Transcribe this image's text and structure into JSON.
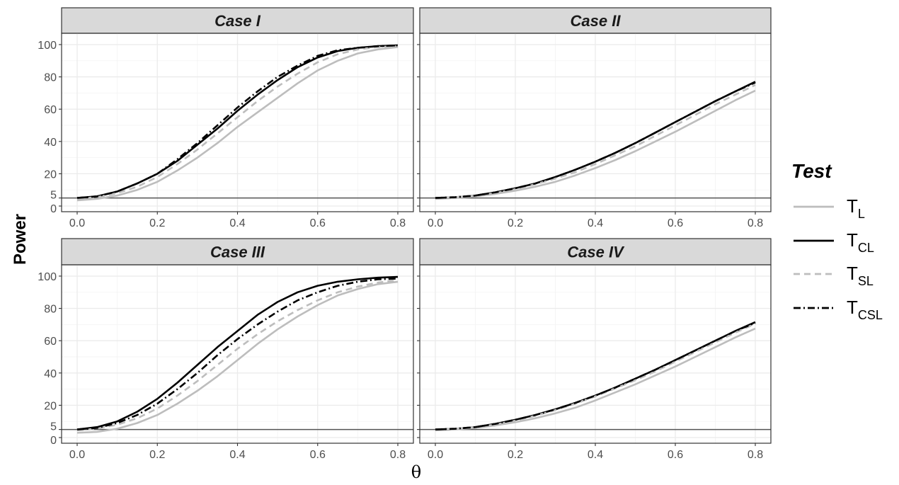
{
  "chart_data": {
    "type": "line",
    "ylabel": "Power",
    "xlabel": "θ",
    "xlim": [
      0,
      0.8
    ],
    "ylim": [
      0,
      100
    ],
    "x_ticks": [
      0.0,
      0.2,
      0.4,
      0.6,
      0.8
    ],
    "x_tick_labels": [
      "0.0",
      "0.2",
      "0.4",
      "0.6",
      "0.8"
    ],
    "y_ticks": [
      0,
      5,
      20,
      40,
      60,
      80,
      100
    ],
    "y_tick_labels": [
      "0",
      "5",
      "20",
      "40",
      "60",
      "80",
      "100"
    ],
    "reference_line": 5,
    "grid": true,
    "legend": {
      "title": "Test",
      "position": "right",
      "items": [
        {
          "main": "T",
          "sub": "L",
          "color": "#bdbdbd",
          "dash": "solid"
        },
        {
          "main": "T",
          "sub": "CL",
          "color": "#000000",
          "dash": "solid"
        },
        {
          "main": "T",
          "sub": "SL",
          "color": "#bdbdbd",
          "dash": "dashed"
        },
        {
          "main": "T",
          "sub": "CSL",
          "color": "#000000",
          "dash": "dotdash"
        }
      ]
    },
    "x": [
      0.0,
      0.05,
      0.1,
      0.15,
      0.2,
      0.25,
      0.3,
      0.35,
      0.4,
      0.45,
      0.5,
      0.55,
      0.6,
      0.65,
      0.7,
      0.75,
      0.8
    ],
    "panels": [
      {
        "title": "Case I",
        "series": [
          {
            "name": "T_L",
            "values": [
              3.5,
              4.5,
              6.5,
              10,
              15,
              22,
              30,
              39,
              49,
              58,
              67,
              76,
              84,
              90,
              94.5,
              97,
              98.5
            ]
          },
          {
            "name": "T_CL",
            "values": [
              5,
              6,
              9,
              14,
              20,
              28,
              38,
              48,
              59,
              69,
              78,
              86,
              92,
              96,
              98,
              99,
              99.5
            ]
          },
          {
            "name": "T_SL",
            "values": [
              4.5,
              5.5,
              8,
              12,
              18,
              26,
              35,
              45,
              55,
              65,
              74,
              82,
              89,
              94,
              97,
              98.5,
              99
            ]
          },
          {
            "name": "T_CSL",
            "values": [
              5,
              6,
              9,
              14,
              20,
              29,
              39,
              50,
              61,
              71,
              80,
              87,
              93,
              96.5,
              98,
              99,
              99.5
            ]
          }
        ]
      },
      {
        "title": "Case II",
        "series": [
          {
            "name": "T_L",
            "values": [
              4.5,
              5,
              6,
              7.5,
              9.5,
              12,
              15,
              19,
              23.5,
              28.5,
              34,
              40,
              46,
              52.5,
              59,
              65.5,
              71.5
            ]
          },
          {
            "name": "T_CL",
            "values": [
              5,
              5.5,
              6.5,
              8.5,
              11,
              14,
              18,
              22.5,
              27.5,
              33,
              39,
              45.5,
              52,
              58.5,
              65,
              71,
              77
            ]
          },
          {
            "name": "T_SL",
            "values": [
              5,
              5.5,
              6.5,
              8,
              10.5,
              13.5,
              17,
              21,
              26,
              31.5,
              37,
              43.5,
              50,
              56.5,
              63,
              69,
              75
            ]
          },
          {
            "name": "T_CSL",
            "values": [
              5,
              5.5,
              6.5,
              8.5,
              11,
              14,
              18,
              22.5,
              27.5,
              33,
              39,
              45.5,
              52,
              58.5,
              65,
              71,
              76.5
            ]
          }
        ]
      },
      {
        "title": "Case III",
        "series": [
          {
            "name": "T_L",
            "values": [
              3,
              3.5,
              5.5,
              9,
              14,
              21,
              29,
              38,
              48,
              58,
              67,
              75,
              82,
              88,
              92,
              95,
              96.5
            ]
          },
          {
            "name": "T_CL",
            "values": [
              5,
              6.5,
              10,
              16,
              24,
              34,
              45,
              56,
              66,
              76,
              84,
              90,
              94,
              96.5,
              98,
              99,
              99.5
            ]
          },
          {
            "name": "T_SL",
            "values": [
              4.5,
              5.5,
              8,
              12,
              18,
              26,
              35,
              45,
              55,
              64,
              72,
              79,
              85,
              90,
              93.5,
              96,
              97.5
            ]
          },
          {
            "name": "T_CSL",
            "values": [
              5,
              6,
              9,
              14,
              21,
              30,
              40,
              51,
              61,
              70,
              78,
              85,
              90,
              94,
              96.5,
              98,
              98.5
            ]
          }
        ]
      },
      {
        "title": "Case IV",
        "series": [
          {
            "name": "T_L",
            "values": [
              4.5,
              5,
              6,
              7.5,
              9.5,
              12,
              15,
              18.5,
              23,
              28,
              33,
              38.5,
              44,
              50,
              56,
              62,
              67.5
            ]
          },
          {
            "name": "T_CL",
            "values": [
              5,
              5.5,
              6.5,
              8.5,
              11,
              14,
              17.5,
              21.5,
              26,
              31,
              36.5,
              42,
              48,
              54,
              60,
              66,
              71.5
            ]
          },
          {
            "name": "T_SL",
            "values": [
              5,
              5.5,
              6.5,
              8,
              10.5,
              13.5,
              17,
              21,
              25.5,
              30.5,
              35.5,
              41,
              47,
              53,
              59,
              65,
              70.5
            ]
          },
          {
            "name": "T_CSL",
            "values": [
              5,
              5.5,
              6.5,
              8.5,
              11,
              14,
              17.5,
              21.5,
              26,
              31,
              36.5,
              42,
              48,
              54,
              60,
              66,
              71
            ]
          }
        ]
      }
    ]
  }
}
